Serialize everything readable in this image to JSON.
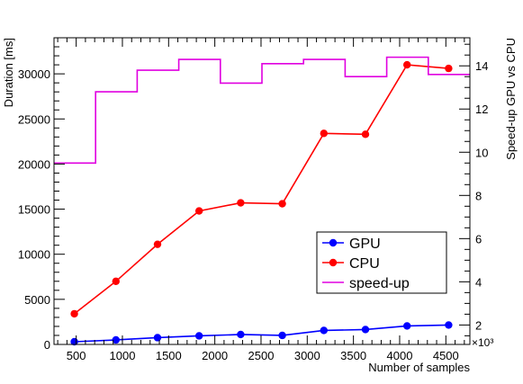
{
  "chart_data": {
    "type": "line",
    "title": "",
    "xlabel": "Number of samples",
    "ylabel_left": "Duration [ms]",
    "ylabel_right": "Speed-up GPU vs CPU",
    "x_exponent_label": "×10³",
    "xlim": [
      260,
      4760
    ],
    "ylim_left": [
      0,
      34000
    ],
    "ylim_right": [
      1.1,
      15.3
    ],
    "grid": false,
    "legend_position": "lower-right",
    "x_ticks": [
      500,
      1000,
      1500,
      2000,
      2500,
      3000,
      3500,
      4000,
      4500
    ],
    "y_left_ticks": [
      0,
      5000,
      10000,
      15000,
      20000,
      25000,
      30000
    ],
    "y_right_ticks": [
      2,
      4,
      6,
      8,
      10,
      12,
      14
    ],
    "series": [
      {
        "name": "GPU",
        "kind": "line-markers",
        "color": "#0000ff",
        "x": [
          480,
          930,
          1380,
          1830,
          2280,
          2730,
          3180,
          3630,
          4080,
          4530
        ],
        "y": [
          300,
          500,
          750,
          950,
          1100,
          1000,
          1550,
          1650,
          2050,
          2150
        ]
      },
      {
        "name": "CPU",
        "kind": "line-markers",
        "color": "#ff0000",
        "x": [
          480,
          930,
          1380,
          1830,
          2280,
          2730,
          3180,
          3630,
          4080,
          4530
        ],
        "y": [
          3400,
          7000,
          11100,
          14800,
          15700,
          15600,
          23400,
          23300,
          31000,
          30600
        ]
      },
      {
        "name": "speed-up",
        "kind": "step",
        "color": "#e000e0",
        "axis": "right",
        "bin_edges": [
          260,
          710,
          1160,
          1610,
          2060,
          2510,
          2960,
          3410,
          3860,
          4310,
          4760
        ],
        "y": [
          9.5,
          12.8,
          13.8,
          14.3,
          13.2,
          14.1,
          14.3,
          13.5,
          14.4,
          13.6
        ]
      }
    ]
  }
}
